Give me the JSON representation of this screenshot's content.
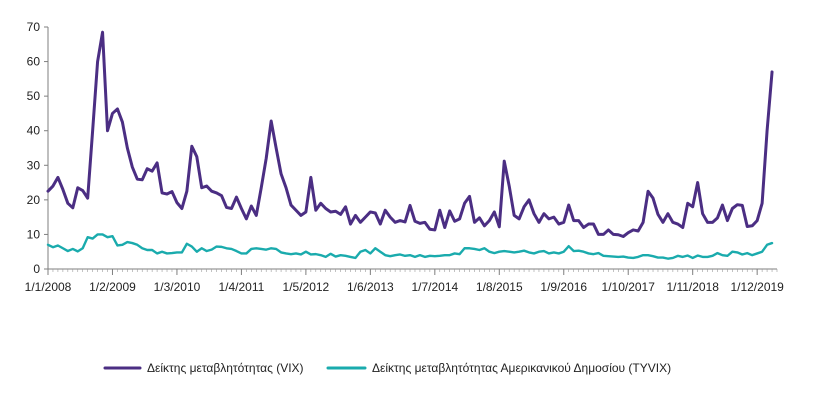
{
  "chart_data": {
    "type": "line",
    "xlabel": "",
    "ylabel": "",
    "ylim": [
      0,
      70
    ],
    "yticks": [
      0,
      10,
      20,
      30,
      40,
      50,
      60,
      70
    ],
    "x_tick_labels": [
      "1/1/2008",
      "1/2/2009",
      "1/3/2010",
      "1/4/2011",
      "1/5/2012",
      "1/6/2013",
      "1/7/2014",
      "1/8/2015",
      "1/9/2016",
      "1/10/2017",
      "1/11/2018",
      "1/12/2019"
    ],
    "x_range_months": [
      0,
      147
    ],
    "grid": false,
    "legend_position": "bottom",
    "series": [
      {
        "name": "Δείκτης μεταβλητότητας (VIX)",
        "color": "#4b2e83",
        "points": [
          [
            0,
            22.5
          ],
          [
            1,
            24
          ],
          [
            2,
            26.5
          ],
          [
            3,
            23
          ],
          [
            4,
            19
          ],
          [
            5,
            17.7
          ],
          [
            6,
            23.5
          ],
          [
            7,
            22.7
          ],
          [
            8,
            20.5
          ],
          [
            9,
            40
          ],
          [
            10,
            60
          ],
          [
            11,
            68.5
          ],
          [
            12,
            40
          ],
          [
            13,
            45
          ],
          [
            14,
            46.3
          ],
          [
            15,
            42.5
          ],
          [
            16,
            35
          ],
          [
            17,
            29.5
          ],
          [
            18,
            26
          ],
          [
            19,
            25.8
          ],
          [
            20,
            29
          ],
          [
            21,
            28.3
          ],
          [
            22,
            30.7
          ],
          [
            23,
            22
          ],
          [
            24,
            21.7
          ],
          [
            25,
            22.4
          ],
          [
            26,
            19.2
          ],
          [
            27,
            17.5
          ],
          [
            28,
            22.5
          ],
          [
            29,
            35.5
          ],
          [
            30,
            32.5
          ],
          [
            31,
            23.5
          ],
          [
            32,
            24
          ],
          [
            33,
            22.5
          ],
          [
            34,
            22
          ],
          [
            35,
            21.2
          ],
          [
            36,
            17.8
          ],
          [
            37,
            17.5
          ],
          [
            38,
            20.8
          ],
          [
            39,
            17.5
          ],
          [
            40,
            14.5
          ],
          [
            41,
            18.2
          ],
          [
            42,
            15.5
          ],
          [
            43,
            23.5
          ],
          [
            44,
            32
          ],
          [
            45,
            42.8
          ],
          [
            46,
            35
          ],
          [
            47,
            27.5
          ],
          [
            48,
            23.5
          ],
          [
            49,
            18.5
          ],
          [
            50,
            17
          ],
          [
            51,
            15.5
          ],
          [
            52,
            16.5
          ],
          [
            53,
            26.5
          ],
          [
            54,
            17
          ],
          [
            55,
            19
          ],
          [
            56,
            17.5
          ],
          [
            57,
            16.5
          ],
          [
            58,
            16.7
          ],
          [
            59,
            15.8
          ],
          [
            60,
            18
          ],
          [
            61,
            13
          ],
          [
            62,
            15.5
          ],
          [
            63,
            13.5
          ],
          [
            64,
            15
          ],
          [
            65,
            16.5
          ],
          [
            66,
            16.2
          ],
          [
            67,
            13
          ],
          [
            68,
            17
          ],
          [
            69,
            15
          ],
          [
            70,
            13.5
          ],
          [
            71,
            14
          ],
          [
            72,
            13.6
          ],
          [
            73,
            18.4
          ],
          [
            74,
            13.8
          ],
          [
            75,
            13.2
          ],
          [
            76,
            13.5
          ],
          [
            77,
            11.5
          ],
          [
            78,
            11.3
          ],
          [
            79,
            17
          ],
          [
            80,
            12
          ],
          [
            81,
            16.8
          ],
          [
            82,
            13.8
          ],
          [
            83,
            14.5
          ],
          [
            84,
            19
          ],
          [
            85,
            21
          ],
          [
            86,
            13.5
          ],
          [
            87,
            14.8
          ],
          [
            88,
            12.5
          ],
          [
            89,
            14
          ],
          [
            90,
            16.5
          ],
          [
            91,
            12.2
          ],
          [
            92,
            31.2
          ],
          [
            93,
            24
          ],
          [
            94,
            15.5
          ],
          [
            95,
            14.5
          ],
          [
            96,
            18
          ],
          [
            97,
            20
          ],
          [
            98,
            16
          ],
          [
            99,
            13.5
          ],
          [
            100,
            16
          ],
          [
            101,
            14.5
          ],
          [
            102,
            15
          ],
          [
            103,
            13
          ],
          [
            104,
            13.5
          ],
          [
            105,
            18.5
          ],
          [
            106,
            14
          ],
          [
            107,
            14
          ],
          [
            108,
            12
          ],
          [
            109,
            13
          ],
          [
            110,
            13
          ],
          [
            111,
            10
          ],
          [
            112,
            10
          ],
          [
            113,
            11.3
          ],
          [
            114,
            10
          ],
          [
            115,
            9.9
          ],
          [
            116,
            9.4
          ],
          [
            117,
            10.5
          ],
          [
            118,
            11.3
          ],
          [
            119,
            11
          ],
          [
            120,
            13.5
          ],
          [
            121,
            22.5
          ],
          [
            122,
            20.5
          ],
          [
            123,
            15.8
          ],
          [
            124,
            13.5
          ],
          [
            125,
            16
          ],
          [
            126,
            13.5
          ],
          [
            127,
            13
          ],
          [
            128,
            12
          ],
          [
            129,
            19
          ],
          [
            130,
            18
          ],
          [
            131,
            25
          ],
          [
            132,
            16
          ],
          [
            133,
            13.5
          ],
          [
            134,
            13.5
          ],
          [
            135,
            14.8
          ],
          [
            136,
            18.5
          ],
          [
            137,
            14
          ],
          [
            138,
            17.5
          ],
          [
            139,
            18.6
          ],
          [
            140,
            18.4
          ],
          [
            141,
            12.3
          ],
          [
            142,
            12.5
          ],
          [
            143,
            14
          ],
          [
            144,
            19
          ],
          [
            145,
            40
          ],
          [
            146,
            57
          ]
        ]
      },
      {
        "name": "Δείκτης μεταβλητότητας Αμερικανικού Δημοσίου (TYVIX)",
        "color": "#1aabad",
        "points": [
          [
            0,
            7
          ],
          [
            1,
            6.3
          ],
          [
            2,
            6.8
          ],
          [
            3,
            6
          ],
          [
            4,
            5.2
          ],
          [
            5,
            5.8
          ],
          [
            6,
            5.1
          ],
          [
            7,
            6
          ],
          [
            8,
            9.2
          ],
          [
            9,
            8.8
          ],
          [
            10,
            10
          ],
          [
            11,
            10
          ],
          [
            12,
            9.2
          ],
          [
            13,
            9.5
          ],
          [
            14,
            6.8
          ],
          [
            15,
            7
          ],
          [
            16,
            7.8
          ],
          [
            17,
            7.5
          ],
          [
            18,
            7
          ],
          [
            19,
            6
          ],
          [
            20,
            5.5
          ],
          [
            21,
            5.5
          ],
          [
            22,
            4.5
          ],
          [
            23,
            5
          ],
          [
            24,
            4.5
          ],
          [
            25,
            4.6
          ],
          [
            26,
            4.8
          ],
          [
            27,
            4.8
          ],
          [
            28,
            7.3
          ],
          [
            29,
            6.5
          ],
          [
            30,
            5
          ],
          [
            31,
            6
          ],
          [
            32,
            5.2
          ],
          [
            33,
            5.6
          ],
          [
            34,
            6.5
          ],
          [
            35,
            6.4
          ],
          [
            36,
            6
          ],
          [
            37,
            5.8
          ],
          [
            38,
            5.2
          ],
          [
            39,
            4.5
          ],
          [
            40,
            4.5
          ],
          [
            41,
            5.8
          ],
          [
            42,
            6
          ],
          [
            43,
            5.8
          ],
          [
            44,
            5.6
          ],
          [
            45,
            6
          ],
          [
            46,
            5.8
          ],
          [
            47,
            4.8
          ],
          [
            48,
            4.5
          ],
          [
            49,
            4.3
          ],
          [
            50,
            4.5
          ],
          [
            51,
            4.2
          ],
          [
            52,
            5
          ],
          [
            53,
            4.2
          ],
          [
            54,
            4.3
          ],
          [
            55,
            4
          ],
          [
            56,
            3.5
          ],
          [
            57,
            4.4
          ],
          [
            58,
            3.6
          ],
          [
            59,
            4
          ],
          [
            60,
            3.8
          ],
          [
            61,
            3.5
          ],
          [
            62,
            3.2
          ],
          [
            63,
            5
          ],
          [
            64,
            5.5
          ],
          [
            65,
            4.5
          ],
          [
            66,
            6
          ],
          [
            67,
            5
          ],
          [
            68,
            4
          ],
          [
            69,
            3.7
          ],
          [
            70,
            4
          ],
          [
            71,
            4.2
          ],
          [
            72,
            3.8
          ],
          [
            73,
            4
          ],
          [
            74,
            3.5
          ],
          [
            75,
            4
          ],
          [
            76,
            3.5
          ],
          [
            77,
            3.8
          ],
          [
            78,
            3.7
          ],
          [
            79,
            3.8
          ],
          [
            80,
            4
          ],
          [
            81,
            4
          ],
          [
            82,
            4.5
          ],
          [
            83,
            4.3
          ],
          [
            84,
            6
          ],
          [
            85,
            6
          ],
          [
            86,
            5.8
          ],
          [
            87,
            5.5
          ],
          [
            88,
            6
          ],
          [
            89,
            5
          ],
          [
            90,
            4.6
          ],
          [
            91,
            5
          ],
          [
            92,
            5.2
          ],
          [
            93,
            5
          ],
          [
            94,
            4.8
          ],
          [
            95,
            5
          ],
          [
            96,
            5.3
          ],
          [
            97,
            4.8
          ],
          [
            98,
            4.5
          ],
          [
            99,
            5
          ],
          [
            100,
            5.2
          ],
          [
            101,
            4.5
          ],
          [
            102,
            4.8
          ],
          [
            103,
            4.5
          ],
          [
            104,
            5
          ],
          [
            105,
            6.6
          ],
          [
            106,
            5.2
          ],
          [
            107,
            5.3
          ],
          [
            108,
            5
          ],
          [
            109,
            4.5
          ],
          [
            110,
            4.3
          ],
          [
            111,
            4.6
          ],
          [
            112,
            3.8
          ],
          [
            113,
            3.7
          ],
          [
            114,
            3.6
          ],
          [
            115,
            3.5
          ],
          [
            116,
            3.6
          ],
          [
            117,
            3.3
          ],
          [
            118,
            3.2
          ],
          [
            119,
            3.5
          ],
          [
            120,
            4
          ],
          [
            121,
            4
          ],
          [
            122,
            3.7
          ],
          [
            123,
            3.3
          ],
          [
            124,
            3.3
          ],
          [
            125,
            3
          ],
          [
            126,
            3.2
          ],
          [
            127,
            3.8
          ],
          [
            128,
            3.5
          ],
          [
            129,
            3.9
          ],
          [
            130,
            3.2
          ],
          [
            131,
            3.9
          ],
          [
            132,
            3.5
          ],
          [
            133,
            3.5
          ],
          [
            134,
            3.8
          ],
          [
            135,
            4.6
          ],
          [
            136,
            4
          ],
          [
            137,
            3.8
          ],
          [
            138,
            5
          ],
          [
            139,
            4.8
          ],
          [
            140,
            4.2
          ],
          [
            141,
            4.6
          ],
          [
            142,
            4
          ],
          [
            143,
            4.5
          ],
          [
            144,
            5
          ],
          [
            145,
            7
          ],
          [
            146,
            7.5
          ]
        ]
      }
    ]
  }
}
